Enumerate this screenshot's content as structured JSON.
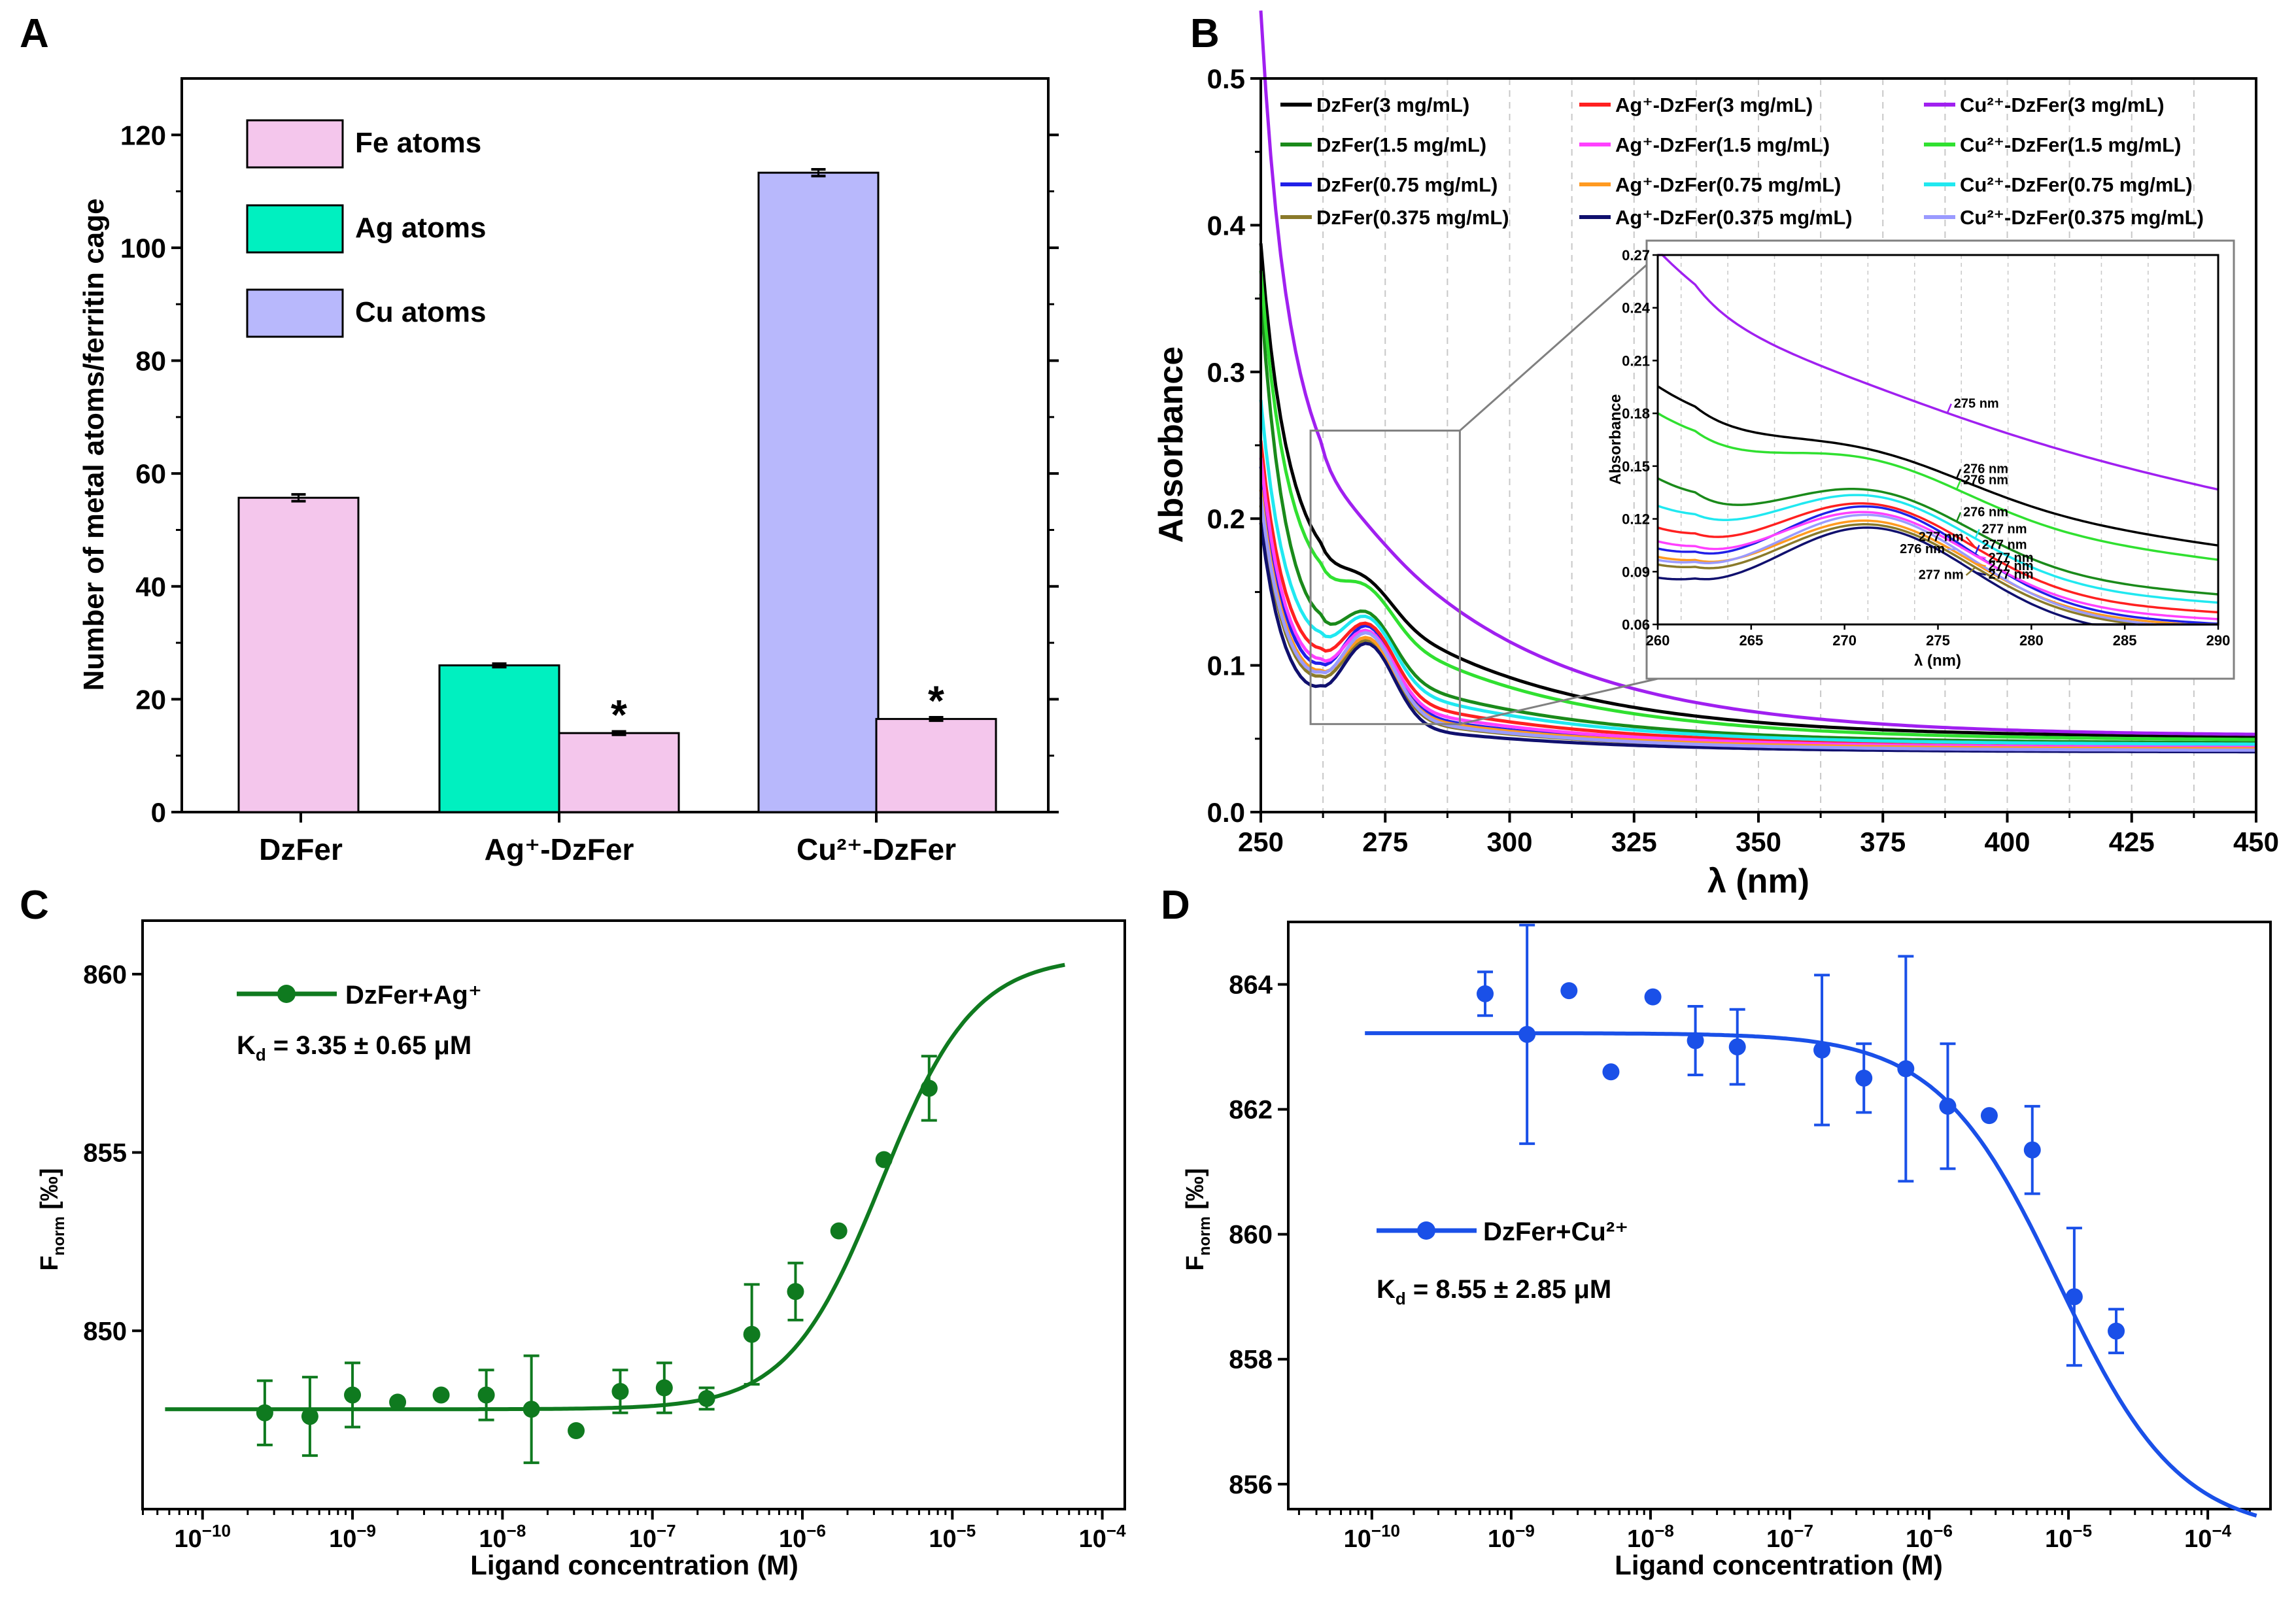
{
  "chart_data": [
    {
      "panel": "A",
      "type": "bar",
      "ylabel": "Number of metal atoms/ferritin cage",
      "xlabel": "",
      "ylim": [
        0,
        130
      ],
      "yticks": [
        0,
        20,
        40,
        60,
        80,
        100,
        120
      ],
      "categories": [
        "DzFer",
        "Ag⁺-DzFer",
        "Cu²⁺-DzFer"
      ],
      "legend_position": "top-left",
      "series": [
        {
          "name": "Fe atoms",
          "color": "#f4c6ec"
        },
        {
          "name": "Ag atoms",
          "color": "#00f0c0"
        },
        {
          "name": "Cu atoms",
          "color": "#b8b8fc"
        }
      ],
      "bars": [
        {
          "category": "DzFer",
          "series": "Fe atoms",
          "value": 55.7,
          "error": 0.6,
          "color": "#f4c6ec"
        },
        {
          "category": "Ag⁺-DzFer",
          "series": "Ag atoms",
          "value": 26.0,
          "error": 0.3,
          "color": "#00f0c0"
        },
        {
          "category": "Ag⁺-DzFer",
          "series": "Fe atoms",
          "value": 14.0,
          "error": 0.3,
          "color": "#f4c6ec",
          "annotation": "*"
        },
        {
          "category": "Cu²⁺-DzFer",
          "series": "Cu atoms",
          "value": 113.3,
          "error": 0.6,
          "color": "#b8b8fc"
        },
        {
          "category": "Cu²⁺-DzFer",
          "series": "Fe atoms",
          "value": 16.5,
          "error": 0.3,
          "color": "#f4c6ec",
          "annotation": "*"
        }
      ]
    },
    {
      "panel": "B",
      "type": "line",
      "xlabel": "λ (nm)",
      "ylabel": "Absorbance",
      "xlim": [
        250,
        450
      ],
      "ylim": [
        0.0,
        0.5
      ],
      "xticks": [
        250,
        275,
        300,
        325,
        350,
        375,
        400,
        425,
        450
      ],
      "yticks": [
        "0.0",
        "0.1",
        "0.2",
        "0.3",
        "0.4",
        "0.5"
      ],
      "legend_position": "top",
      "series": [
        {
          "name": "DzFer(3 mg/mL)",
          "color": "#000000",
          "bump": 0.2,
          "valley": 0.182,
          "a0": 0.355,
          "tail": 0.051
        },
        {
          "name": "DzFer(1.5 mg/mL)",
          "color": "#1a8a1a",
          "bump": 0.159,
          "valley": 0.12,
          "a0": 0.335,
          "tail": 0.047
        },
        {
          "name": "DzFer(0.75 mg/mL)",
          "color": "#2020e8",
          "bump": 0.14,
          "valley": 0.085,
          "a0": 0.225,
          "tail": 0.043
        },
        {
          "name": "DzFer(0.375 mg/mL)",
          "color": "#8a7a2a",
          "bump": 0.128,
          "valley": 0.078,
          "a0": 0.2,
          "tail": 0.042
        },
        {
          "name": "Ag⁺-DzFer(3 mg/mL)",
          "color": "#ff2020",
          "bump": 0.145,
          "valley": 0.098,
          "a0": 0.24,
          "tail": 0.045
        },
        {
          "name": "Ag⁺-DzFer(1.5 mg/mL)",
          "color": "#ff40ff",
          "bump": 0.138,
          "valley": 0.09,
          "a0": 0.23,
          "tail": 0.044
        },
        {
          "name": "Ag⁺-DzFer(0.75 mg/mL)",
          "color": "#ff9a20",
          "bump": 0.131,
          "valley": 0.082,
          "a0": 0.21,
          "tail": 0.043
        },
        {
          "name": "Ag⁺-DzFer(0.375 mg/mL)",
          "color": "#10106e",
          "bump": 0.124,
          "valley": 0.07,
          "a0": 0.19,
          "tail": 0.041
        },
        {
          "name": "Cu²⁺-DzFer(3 mg/mL)",
          "color": "#a020f0",
          "bump": 0.26,
          "valley": 0.258,
          "a0": 0.495,
          "tail": 0.052
        },
        {
          "name": "Cu²⁺-DzFer(1.5 mg/mL)",
          "color": "#30e030",
          "bump": 0.19,
          "valley": 0.165,
          "a0": 0.34,
          "tail": 0.049
        },
        {
          "name": "Cu²⁺-DzFer(0.75 mg/mL)",
          "color": "#20e8f0",
          "bump": 0.153,
          "valley": 0.11,
          "a0": 0.265,
          "tail": 0.046
        },
        {
          "name": "Cu²⁺-DzFer(0.375 mg/mL)",
          "color": "#9a9aff",
          "bump": 0.134,
          "valley": 0.08,
          "a0": 0.205,
          "tail": 0.042
        }
      ],
      "inset": {
        "xlabel": "λ (nm)",
        "ylabel": "Absorbance",
        "xlim": [
          260,
          290
        ],
        "ylim": [
          0.06,
          0.27
        ],
        "xticks": [
          260,
          265,
          270,
          275,
          280,
          285,
          290
        ],
        "yticks": [
          "0.06",
          "0.09",
          "0.12",
          "0.15",
          "0.18",
          "0.21",
          "0.24",
          "0.27"
        ],
        "zoom_region": {
          "x": [
            260,
            290
          ],
          "y": [
            0.06,
            0.27
          ]
        },
        "peak_labels": [
          {
            "text": "275 nm",
            "series": "Cu²⁺-DzFer(3 mg/mL)",
            "x": 275.5
          },
          {
            "text": "276 nm",
            "series": "DzFer(3 mg/mL)",
            "x": 276
          },
          {
            "text": "276 nm",
            "series": "Cu²⁺-DzFer(1.5 mg/mL)",
            "x": 276
          },
          {
            "text": "276 nm",
            "series": "DzFer(1.5 mg/mL)",
            "x": 276
          },
          {
            "text": "277 nm",
            "series": "Cu²⁺-DzFer(0.75 mg/mL)",
            "x": 277
          },
          {
            "text": "277 nm",
            "series": "DzFer(0.75 mg/mL)",
            "x": 277
          },
          {
            "text": "277 nm",
            "series": "Ag⁺-DzFer(3 mg/mL)",
            "x": 277
          },
          {
            "text": "277 nm",
            "series": "Ag⁺-DzFer(1.5 mg/mL)",
            "x": 277
          },
          {
            "text": "276 nm",
            "series": "Cu²⁺-DzFer(0.375 mg/mL)",
            "x": 276
          },
          {
            "text": "277 nm",
            "series": "Ag⁺-DzFer(0.75 mg/mL)",
            "x": 277
          },
          {
            "text": "277 nm",
            "series": "DzFer(0.375 mg/mL)",
            "x": 277
          },
          {
            "text": "277 nm",
            "series": "Ag⁺-DzFer(0.375 mg/mL)",
            "x": 277
          }
        ]
      }
    },
    {
      "panel": "C",
      "type": "scatter",
      "xlabel": "Ligand concentration (M)",
      "ylabel_main": "F",
      "ylabel_sub": "norm",
      "ylabel_tail": " [‰]",
      "xscale": "log",
      "xlim_exp": [
        -10.4,
        -3.85
      ],
      "ylim": [
        845,
        861.5
      ],
      "yticks": [
        850,
        855,
        860
      ],
      "xtick_exps": [
        -10,
        -9,
        -8,
        -7,
        -6,
        -5,
        -4
      ],
      "color": "#0f7a1f",
      "legend_label": "DzFer+Ag⁺",
      "kd_main": "K",
      "kd_sub": "d",
      "kd_text": " = 3.35 ± 0.65 μM",
      "fit": {
        "model": "hill",
        "kd": 3.35e-06,
        "bottom": 847.8,
        "top": 860.5,
        "n": 1.4,
        "x_range_exp": [
          -10.25,
          -4.25
        ]
      },
      "points": [
        {
          "x": 2.6e-10,
          "y": 847.7,
          "err": 0.9
        },
        {
          "x": 5.2e-10,
          "y": 847.6,
          "err": 1.1
        },
        {
          "x": 1e-09,
          "y": 848.2,
          "err": 0.9
        },
        {
          "x": 2e-09,
          "y": 848.0,
          "err": 0
        },
        {
          "x": 3.9e-09,
          "y": 848.2,
          "err": 0
        },
        {
          "x": 7.8e-09,
          "y": 848.2,
          "err": 0.7
        },
        {
          "x": 1.56e-08,
          "y": 847.8,
          "err": 1.5
        },
        {
          "x": 3.1e-08,
          "y": 847.2,
          "err": 0
        },
        {
          "x": 6.1e-08,
          "y": 848.3,
          "err": 0.6
        },
        {
          "x": 1.2e-07,
          "y": 848.4,
          "err": 0.7
        },
        {
          "x": 2.3e-07,
          "y": 848.1,
          "err": 0.3
        },
        {
          "x": 4.6e-07,
          "y": 849.9,
          "err": 1.4
        },
        {
          "x": 9e-07,
          "y": 851.1,
          "err": 0.8
        },
        {
          "x": 1.75e-06,
          "y": 852.8,
          "err": 0
        },
        {
          "x": 3.5e-06,
          "y": 854.8,
          "err": 0
        },
        {
          "x": 7e-06,
          "y": 856.8,
          "err": 0.9
        }
      ]
    },
    {
      "panel": "D",
      "type": "scatter",
      "xlabel": "Ligand concentration (M)",
      "ylabel_main": "F",
      "ylabel_sub": "norm",
      "ylabel_tail": " [‰]",
      "xscale": "log",
      "xlim_exp": [
        -10.6,
        -3.55
      ],
      "ylim": [
        855.6,
        865.0
      ],
      "yticks": [
        856,
        858,
        860,
        862,
        864
      ],
      "xtick_exps": [
        -10,
        -9,
        -8,
        -7,
        -6,
        -5,
        -4
      ],
      "color": "#1a50e8",
      "legend_label": "DzFer+Cu²⁺",
      "kd_main": "K",
      "kd_sub": "d",
      "kd_text": " = 8.55 ± 2.85 μM",
      "fit": {
        "model": "hill",
        "kd": 8.55e-06,
        "bottom": 863.22,
        "top": 855.2,
        "n": 1.0,
        "x_range_exp": [
          -10.05,
          -3.65
        ]
      },
      "points": [
        {
          "x": 6.5e-10,
          "y": 863.85,
          "err": 0.35
        },
        {
          "x": 1.3e-09,
          "y": 863.2,
          "err": 1.75
        },
        {
          "x": 2.6e-09,
          "y": 863.9,
          "err": 0
        },
        {
          "x": 5.2e-09,
          "y": 862.6,
          "err": 0
        },
        {
          "x": 1.04e-08,
          "y": 863.8,
          "err": 0
        },
        {
          "x": 2.1e-08,
          "y": 863.1,
          "err": 0.55
        },
        {
          "x": 4.2e-08,
          "y": 863.0,
          "err": 0.6
        },
        {
          "x": 1.7e-07,
          "y": 862.95,
          "err": 1.2
        },
        {
          "x": 3.4e-07,
          "y": 862.5,
          "err": 0.55
        },
        {
          "x": 6.8e-07,
          "y": 862.65,
          "err": 1.8
        },
        {
          "x": 1.36e-06,
          "y": 862.05,
          "err": 1.0
        },
        {
          "x": 2.7e-06,
          "y": 861.9,
          "err": 0
        },
        {
          "x": 5.5e-06,
          "y": 861.35,
          "err": 0.7
        },
        {
          "x": 1.1e-05,
          "y": 859.0,
          "err": 1.1
        },
        {
          "x": 2.2e-05,
          "y": 858.45,
          "err": 0.35
        }
      ]
    }
  ],
  "panel_labels": {
    "a": "A",
    "b": "B",
    "c": "C",
    "d": "D"
  },
  "panelA": {
    "ylabel": "Number of metal atoms/ferritin cage",
    "cat1": "DzFer",
    "cat2": "Ag⁺-DzFer",
    "cat3": "Cu²⁺-DzFer",
    "leg1": "Fe atoms",
    "leg2": "Ag atoms",
    "leg3": "Cu atoms",
    "star": "*"
  },
  "panelB": {
    "ylabel": "Absorbance",
    "xlabel": "λ (nm)",
    "inset_ylabel": "Absorbance",
    "inset_xlabel": "λ (nm)"
  },
  "panelC": {
    "xlabel": "Ligand concentration (M)",
    "legend": "DzFer+Ag⁺",
    "ylabel_main": "F",
    "ylabel_sub": "norm",
    "ylabel_tail": " [‰]",
    "kd_main": "K",
    "kd_sub": "d",
    "kd_text": " = 3.35 ± 0.65 μM"
  },
  "panelD": {
    "xlabel": "Ligand concentration (M)",
    "legend": "DzFer+Cu²⁺",
    "ylabel_main": "F",
    "ylabel_sub": "norm",
    "ylabel_tail": " [‰]",
    "kd_main": "K",
    "kd_sub": "d",
    "kd_text": " = 8.55 ± 2.85 μM"
  },
  "log_tick_base": "10"
}
